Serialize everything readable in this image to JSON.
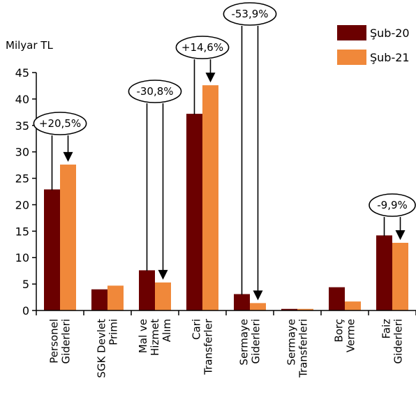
{
  "chart_data": {
    "type": "bar",
    "ylabel": "Milyar TL",
    "ylim": [
      0,
      45
    ],
    "yticks": [
      0,
      5,
      10,
      15,
      20,
      25,
      30,
      35,
      40,
      45
    ],
    "grid": false,
    "legend_position": "top-right",
    "categories": [
      [
        "Personel",
        "Giderleri"
      ],
      [
        "SGK Devlet",
        "Primi"
      ],
      [
        "Mal ve",
        "Hizmet",
        "Alım"
      ],
      [
        "Cari",
        "Transferler"
      ],
      [
        "Sermaye",
        "Giderleri"
      ],
      [
        "Sermaye",
        "Transferleri"
      ],
      [
        "Borç",
        "Verme"
      ],
      [
        "Faiz",
        "Giderleri"
      ]
    ],
    "series": [
      {
        "name": "Şub-20",
        "color": "#6b0000",
        "values": [
          22.9,
          4.0,
          7.6,
          37.2,
          3.1,
          0.3,
          4.4,
          14.2
        ]
      },
      {
        "name": "Şub-21",
        "color": "#f0883a",
        "values": [
          27.6,
          4.7,
          5.3,
          42.6,
          1.4,
          0.3,
          1.7,
          12.8
        ]
      }
    ],
    "annotations": [
      {
        "category": 0,
        "text": "+20,5%"
      },
      {
        "category": 2,
        "text": "-30,8%"
      },
      {
        "category": 3,
        "text": "+14,6%"
      },
      {
        "category": 4,
        "text": "-53,9%"
      },
      {
        "category": 7,
        "text": "-9,9%"
      }
    ]
  }
}
